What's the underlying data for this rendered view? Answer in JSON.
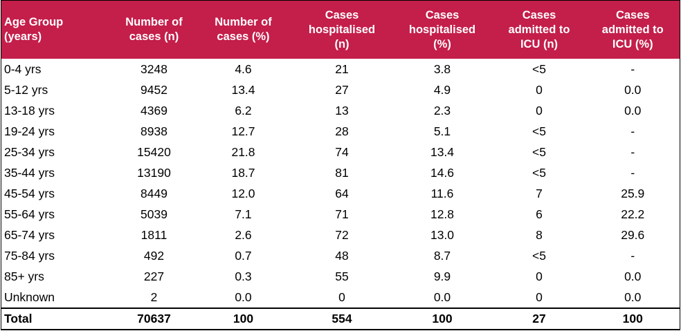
{
  "table": {
    "headers": [
      "Age Group\n(years)",
      "Number of\ncases (n)",
      "Number of\ncases (%)",
      "Cases\nhospitalised\n(n)",
      "Cases\nhospitalised\n(%)",
      "Cases\nadmitted to\nICU (n)",
      "Cases\nadmitted to\nICU (%)"
    ],
    "rows": [
      [
        "0-4 yrs",
        "3248",
        "4.6",
        "21",
        "3.8",
        "<5",
        "-"
      ],
      [
        "5-12 yrs",
        "9452",
        "13.4",
        "27",
        "4.9",
        "0",
        "0.0"
      ],
      [
        "13-18 yrs",
        "4369",
        "6.2",
        "13",
        "2.3",
        "0",
        "0.0"
      ],
      [
        "19-24 yrs",
        "8938",
        "12.7",
        "28",
        "5.1",
        "<5",
        "-"
      ],
      [
        "25-34 yrs",
        "15420",
        "21.8",
        "74",
        "13.4",
        "<5",
        "-"
      ],
      [
        "35-44 yrs",
        "13190",
        "18.7",
        "81",
        "14.6",
        "<5",
        "-"
      ],
      [
        "45-54 yrs",
        "8449",
        "12.0",
        "64",
        "11.6",
        "7",
        "25.9"
      ],
      [
        "55-64 yrs",
        "5039",
        "7.1",
        "71",
        "12.8",
        "6",
        "22.2"
      ],
      [
        "65-74 yrs",
        "1811",
        "2.6",
        "72",
        "13.0",
        "8",
        "29.6"
      ],
      [
        "75-84 yrs",
        "492",
        "0.7",
        "48",
        "8.7",
        "<5",
        "-"
      ],
      [
        "85+ yrs",
        "227",
        "0.3",
        "55",
        "9.9",
        "0",
        "0.0"
      ],
      [
        "Unknown",
        "2",
        "0.0",
        "0",
        "0.0",
        "0",
        "0.0"
      ]
    ],
    "total": [
      "Total",
      "70637",
      "100",
      "554",
      "100",
      "27",
      "100"
    ]
  },
  "colors": {
    "header_bg": "#c41e4a",
    "header_text": "#ffffff"
  }
}
